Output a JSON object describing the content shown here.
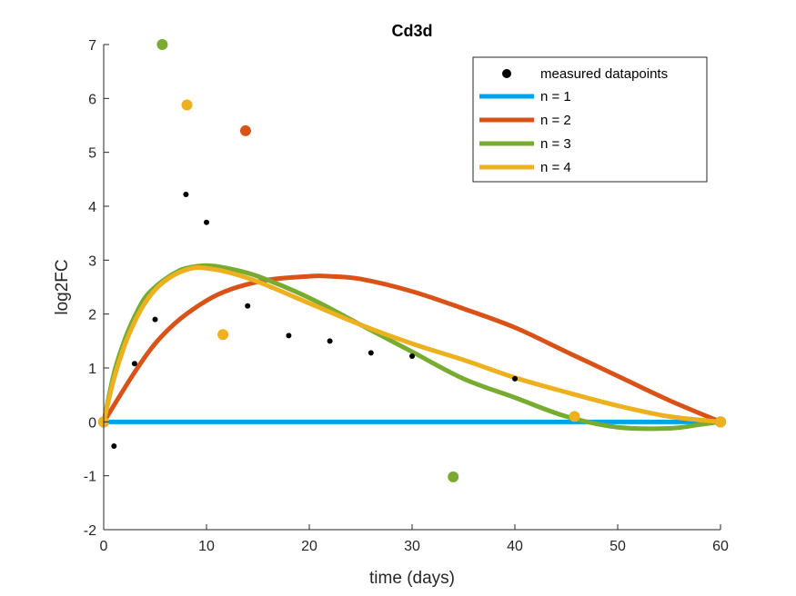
{
  "chart_data": {
    "type": "line",
    "title": "Cd3d",
    "xlabel": "time (days)",
    "ylabel": "log2FC",
    "xlim": [
      0,
      60
    ],
    "ylim": [
      -2,
      7
    ],
    "xticks": [
      0,
      10,
      20,
      30,
      40,
      50,
      60
    ],
    "yticks": [
      -2,
      -1,
      0,
      1,
      2,
      3,
      4,
      5,
      6,
      7
    ],
    "grid": false,
    "legend_position": "top-right",
    "measured": {
      "name": "measured datapoints",
      "color": "#000000",
      "x": [
        1,
        3,
        5,
        8,
        10,
        14,
        18,
        22,
        26,
        30,
        40
      ],
      "y": [
        -0.45,
        1.08,
        1.9,
        4.22,
        3.7,
        2.15,
        1.6,
        1.5,
        1.28,
        1.22,
        0.8
      ]
    },
    "series": [
      {
        "name": "n = 1",
        "color": "#0072BD",
        "stroke": "#00A2E8",
        "x": [
          0,
          60
        ],
        "y": [
          0,
          0
        ],
        "knots": {
          "x": [
            0,
            60
          ],
          "y": [
            0,
            0
          ]
        }
      },
      {
        "name": "n = 2",
        "color": "#D95319",
        "x": [
          0,
          5,
          10,
          15,
          20,
          22,
          25,
          30,
          35,
          40,
          45,
          50,
          55,
          60
        ],
        "y": [
          0,
          1.45,
          2.25,
          2.6,
          2.7,
          2.7,
          2.65,
          2.42,
          2.1,
          1.75,
          1.3,
          0.85,
          0.4,
          0
        ],
        "knots": {
          "x": [
            0,
            13.8,
            60
          ],
          "y": [
            0,
            5.4,
            0
          ]
        }
      },
      {
        "name": "n = 3",
        "color": "#77AC30",
        "x": [
          0,
          1,
          2,
          3,
          4,
          5,
          6,
          7,
          8,
          10,
          12,
          15,
          20,
          25,
          30,
          35,
          40,
          45,
          50,
          55,
          58,
          60
        ],
        "y": [
          0,
          0.9,
          1.5,
          1.95,
          2.3,
          2.5,
          2.65,
          2.77,
          2.85,
          2.9,
          2.85,
          2.7,
          2.3,
          1.8,
          1.3,
          0.8,
          0.45,
          0.1,
          -0.1,
          -0.12,
          -0.05,
          0
        ],
        "knots": {
          "x": [
            0,
            5.7,
            34,
            60
          ],
          "y": [
            0,
            7.0,
            -1.02,
            0
          ]
        }
      },
      {
        "name": "n = 4",
        "color": "#EDB120",
        "x": [
          0,
          1,
          2,
          3,
          4,
          5,
          6,
          7,
          8,
          9,
          10,
          12,
          15,
          20,
          25,
          30,
          35,
          40,
          45,
          50,
          55,
          60
        ],
        "y": [
          0,
          0.8,
          1.4,
          1.85,
          2.2,
          2.45,
          2.62,
          2.74,
          2.82,
          2.86,
          2.85,
          2.78,
          2.6,
          2.2,
          1.8,
          1.45,
          1.15,
          0.82,
          0.55,
          0.3,
          0.1,
          0
        ],
        "knots": {
          "x": [
            0,
            8.1,
            11.6,
            45.8,
            60
          ],
          "y": [
            0,
            5.88,
            1.62,
            0.1,
            0
          ]
        }
      }
    ]
  }
}
